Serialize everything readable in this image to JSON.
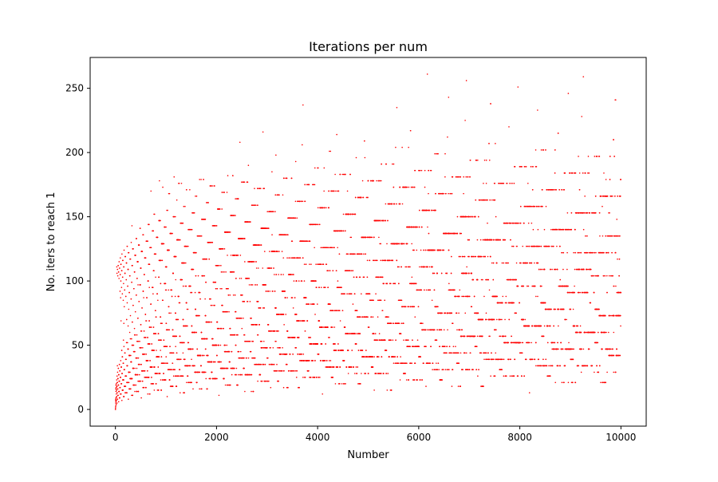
{
  "chart_data": {
    "type": "scatter",
    "title": "Iterations per num",
    "xlabel": "Number",
    "ylabel": "No. iters to reach 1",
    "xlim": [
      -500,
      10500
    ],
    "ylim": [
      -13,
      274
    ],
    "x_ticks": [
      0,
      2000,
      4000,
      6000,
      8000,
      10000
    ],
    "y_ticks": [
      0,
      50,
      100,
      150,
      200,
      250
    ],
    "grid": false,
    "marker_color": "#ff0000",
    "series": [
      {
        "description": "Collatz stopping times: for each integer n from 1 to 9999, the number of iterations needed to reach 1",
        "x_start": 1,
        "x_end": 9999,
        "rule": "collatz"
      }
    ]
  }
}
